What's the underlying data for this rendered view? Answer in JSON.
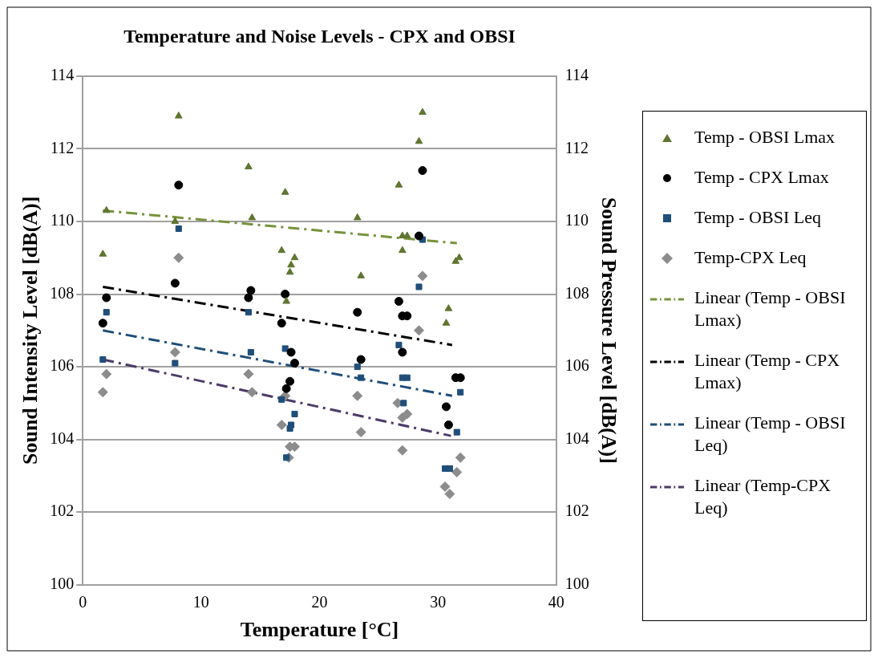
{
  "chart_data": {
    "type": "scatter",
    "title": "Temperature and Noise Levels - CPX and OBSI",
    "xlabel": "Temperature [°C]",
    "ylabel": "Sound Intensity Level [dB(A)]",
    "y2label": "Sound Pressure Level [dB(A)]",
    "xlim": [
      0,
      40
    ],
    "xticks": [
      0,
      10,
      20,
      30,
      40
    ],
    "ylim": [
      100,
      114
    ],
    "yticks": [
      100,
      102,
      104,
      106,
      108,
      110,
      112,
      114
    ],
    "y2lim": [
      100,
      114
    ],
    "y2ticks": [
      100,
      102,
      104,
      106,
      108,
      110,
      112,
      114
    ],
    "grid": "y",
    "legend": "right",
    "series": [
      {
        "name": "Temp - OBSI Lmax",
        "color": "#5f7530",
        "marker": "triangle",
        "x": [
          2.0,
          1.7,
          8.1,
          7.8,
          14.0,
          14.3,
          17.1,
          16.8,
          17.9,
          17.6,
          17.5,
          17.2,
          28.7,
          28.4,
          26.7,
          23.2,
          27.0,
          27.4,
          27.0,
          23.5,
          31.8,
          31.5,
          30.9,
          30.7
        ],
        "values": [
          110.3,
          109.1,
          112.9,
          110.0,
          111.5,
          110.1,
          110.8,
          109.2,
          109.0,
          108.8,
          108.6,
          107.8,
          113.0,
          112.2,
          111.0,
          110.1,
          109.6,
          109.6,
          109.2,
          108.5,
          109.0,
          108.9,
          107.6,
          107.2
        ]
      },
      {
        "name": "Temp - CPX Lmax",
        "color": "#000000",
        "marker": "circle",
        "x": [
          8.1,
          7.8,
          2.0,
          1.7,
          14.2,
          14.0,
          17.1,
          16.8,
          17.6,
          17.9,
          17.5,
          17.2,
          28.7,
          28.4,
          26.7,
          23.2,
          27.0,
          27.4,
          23.5,
          27.0,
          31.5,
          31.9,
          30.7,
          30.9
        ],
        "values": [
          111.0,
          108.3,
          107.9,
          107.2,
          108.1,
          107.9,
          108.0,
          107.2,
          106.4,
          106.1,
          105.6,
          105.4,
          111.4,
          109.6,
          107.8,
          107.5,
          107.4,
          107.4,
          106.2,
          106.4,
          105.7,
          105.7,
          104.9,
          104.4
        ]
      },
      {
        "name": "Temp - OBSI Leq",
        "color": "#1f4e79",
        "marker": "square",
        "x": [
          8.1,
          2.0,
          14.0,
          1.7,
          7.8,
          14.2,
          17.1,
          16.8,
          17.9,
          17.6,
          17.5,
          17.2,
          28.7,
          28.4,
          26.7,
          23.2,
          23.5,
          27.0,
          27.4,
          27.1,
          31.9,
          31.6,
          30.6,
          31.0
        ],
        "values": [
          109.8,
          107.5,
          107.5,
          106.2,
          106.1,
          106.4,
          106.5,
          105.1,
          104.7,
          104.4,
          104.3,
          103.5,
          109.5,
          108.2,
          106.6,
          106.0,
          105.7,
          105.7,
          105.7,
          105.0,
          105.3,
          104.2,
          103.2,
          103.2
        ]
      },
      {
        "name": "Temp-CPX Leq",
        "color": "#8c8c8c",
        "marker": "diamond",
        "x": [
          8.1,
          28.7,
          28.4,
          7.8,
          2.0,
          1.7,
          14.0,
          14.3,
          17.1,
          16.8,
          17.5,
          17.9,
          17.4,
          23.2,
          26.6,
          27.0,
          27.4,
          23.5,
          27.0,
          31.9,
          31.6,
          30.6,
          31.0
        ],
        "values": [
          109.0,
          108.5,
          107.0,
          106.4,
          105.8,
          105.3,
          105.8,
          105.3,
          105.2,
          104.4,
          103.8,
          103.8,
          103.5,
          105.2,
          105.0,
          104.6,
          104.7,
          104.2,
          103.7,
          103.5,
          103.1,
          102.7,
          102.5
        ]
      },
      {
        "name": "Linear (Temp - OBSI Lmax)",
        "type": "line",
        "color": "#77933c",
        "line_style": "dashed",
        "marker": "none",
        "x": [
          1.7,
          31.6
        ],
        "values": [
          110.3,
          109.4
        ]
      },
      {
        "name": "Linear (Temp - CPX Lmax)",
        "type": "line",
        "color": "#000000",
        "line_style": "dashed",
        "marker": "none",
        "x": [
          1.7,
          31.2
        ],
        "values": [
          108.2,
          106.6
        ]
      },
      {
        "name": "Linear (Temp - OBSI Leq)",
        "type": "line",
        "color": "#1f4e79",
        "line_style": "dashed",
        "marker": "none",
        "x": [
          1.7,
          31.2
        ],
        "values": [
          107.0,
          105.2
        ]
      },
      {
        "name": "Linear (Temp-CPX Leq)",
        "type": "line",
        "color": "#4b3b68",
        "line_style": "dashed",
        "marker": "none",
        "x": [
          1.7,
          31.1
        ],
        "values": [
          106.2,
          104.1
        ]
      }
    ]
  }
}
